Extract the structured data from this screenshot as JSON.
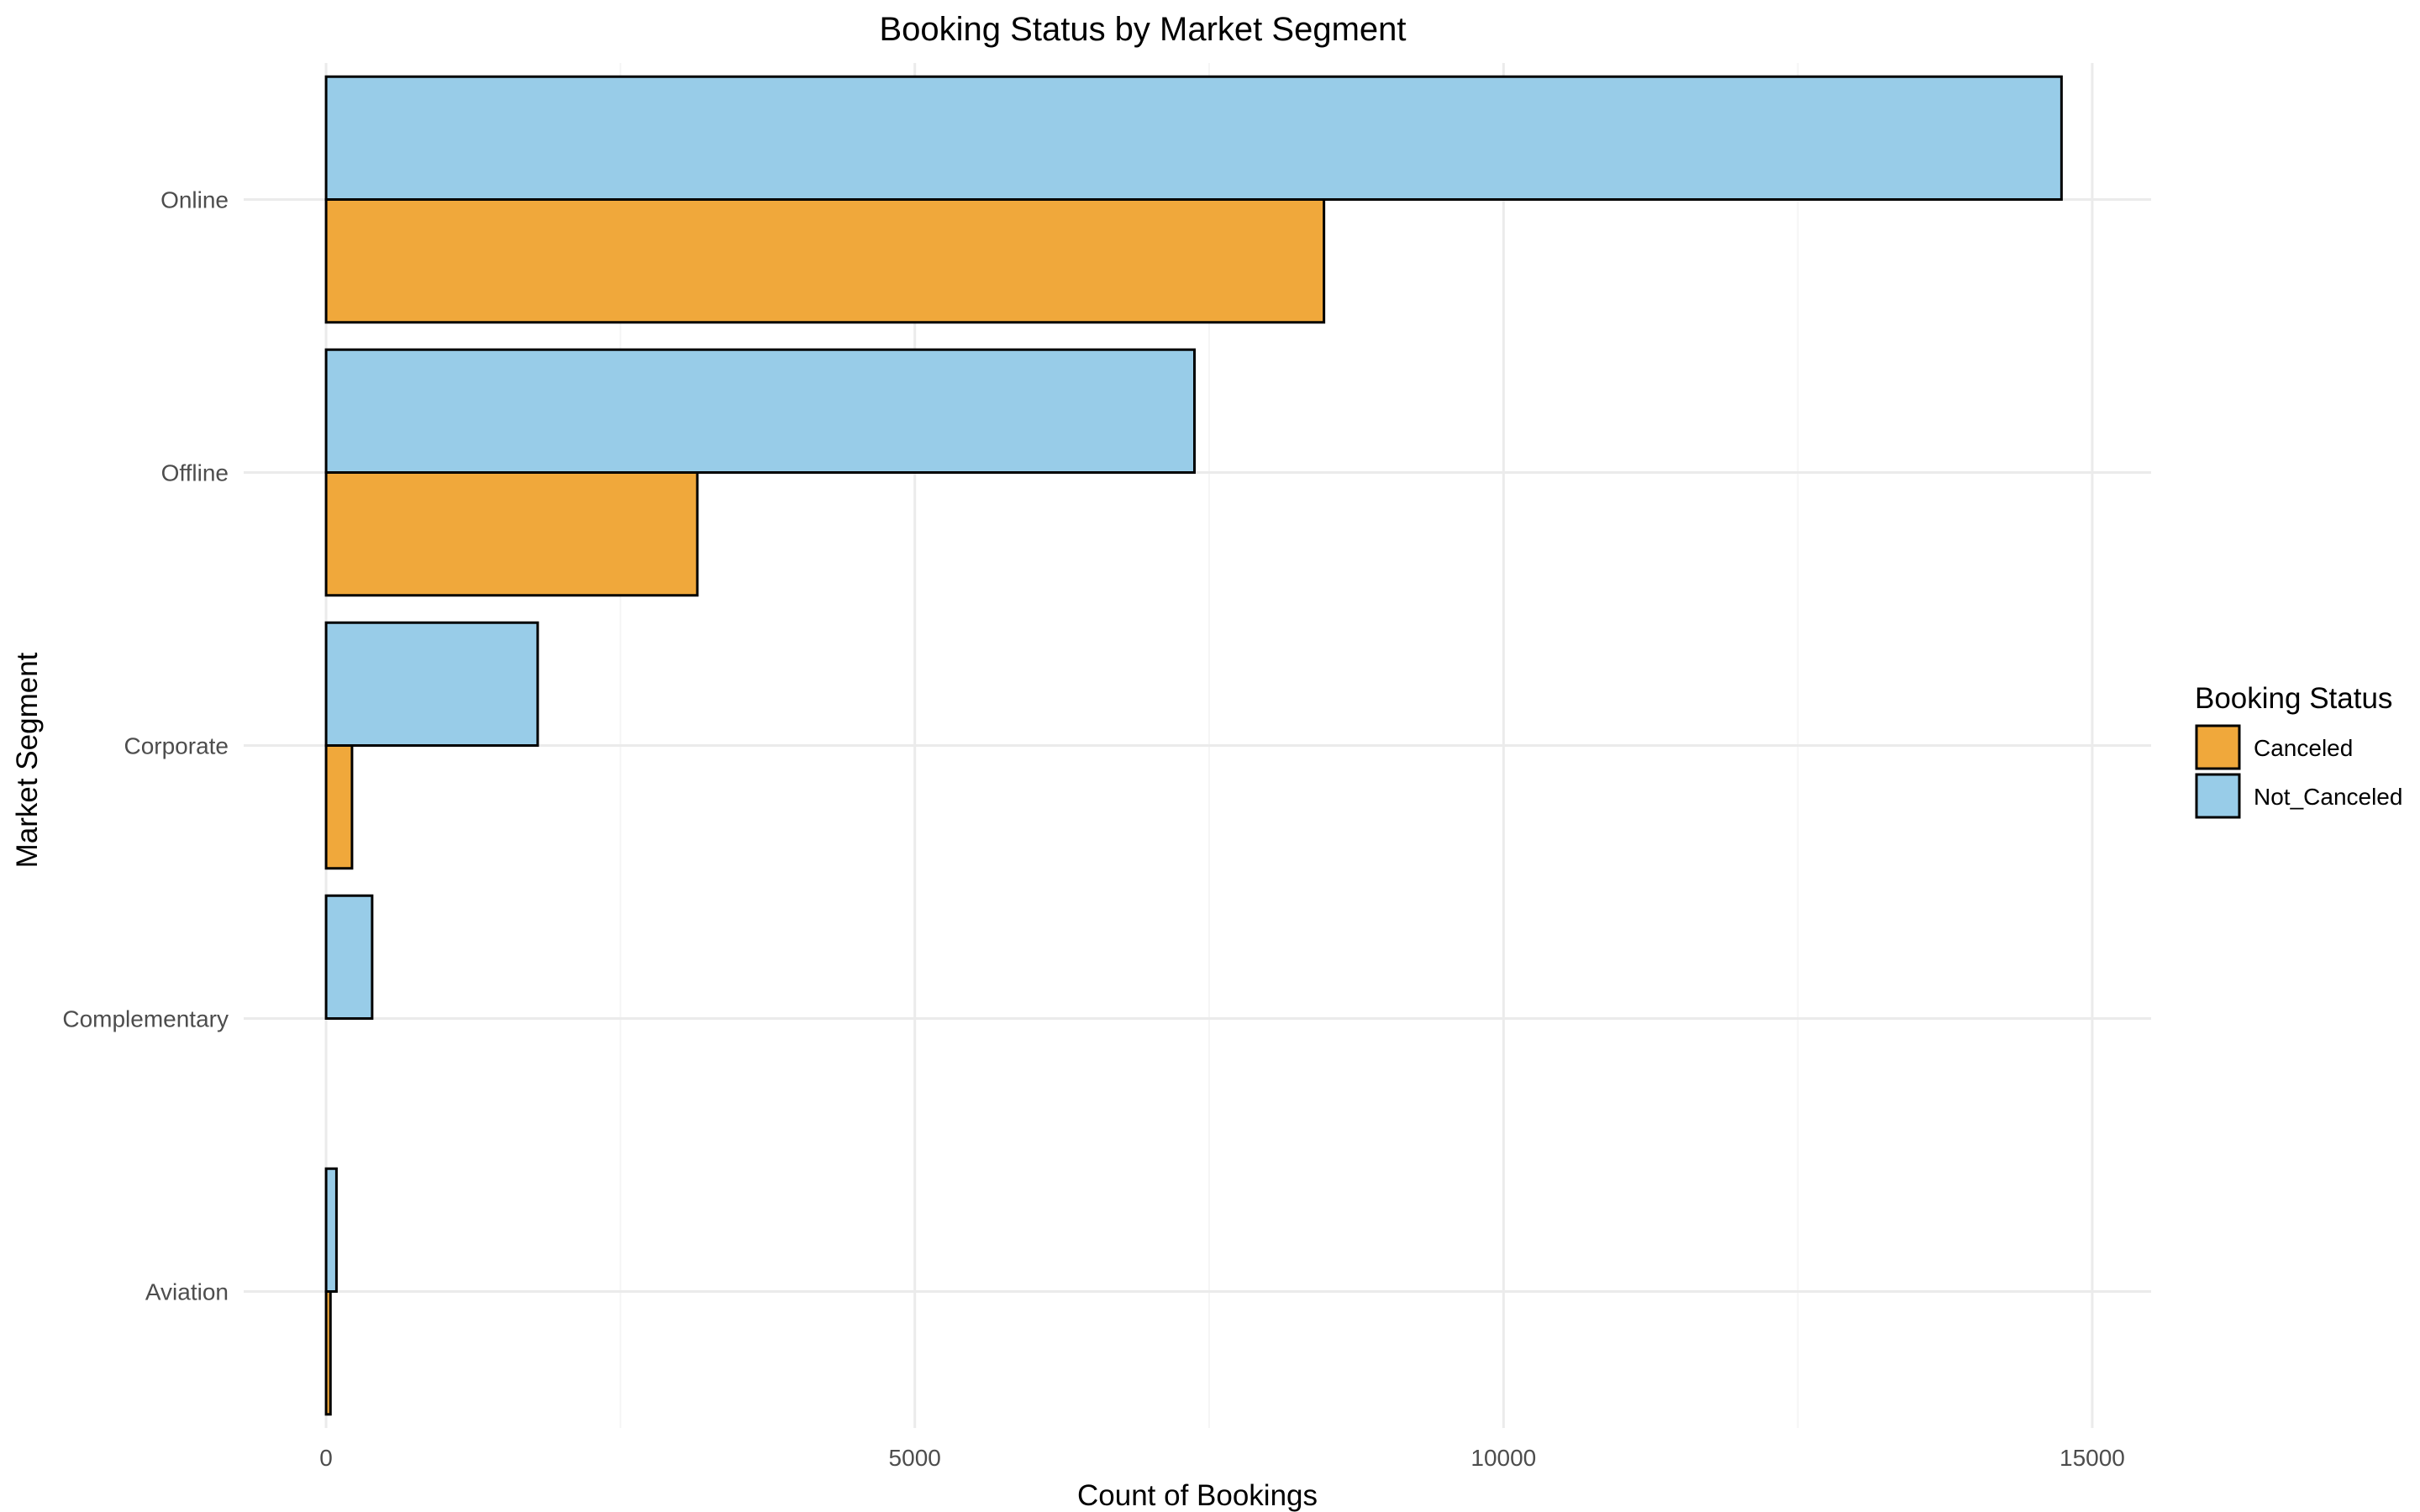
{
  "chart_data": {
    "type": "bar",
    "orientation": "horizontal",
    "title": "Booking Status by Market Segment",
    "xlabel": "Count of Bookings",
    "ylabel": "Market Segment",
    "categories": [
      "Aviation",
      "Complementary",
      "Corporate",
      "Offline",
      "Online"
    ],
    "series": [
      {
        "name": "Canceled",
        "values": [
          37,
          0,
          220,
          3153,
          8475
        ]
      },
      {
        "name": "Not_Canceled",
        "values": [
          88,
          391,
          1797,
          7375,
          14739
        ]
      }
    ],
    "xlim": [
      -700,
      15500
    ],
    "xticks": [
      0,
      5000,
      10000,
      15000
    ],
    "xtick_labels": [
      "0",
      "5000",
      "10000",
      "15000"
    ],
    "grid": true,
    "legend": {
      "title": "Booking Status",
      "position": "right",
      "entries": [
        "Canceled",
        "Not_Canceled"
      ]
    },
    "colors": {
      "Canceled": "#F0A83B",
      "Not_Canceled": "#98CCE8",
      "bar_outline": "#000000",
      "grid_major": "#EBEBEB",
      "grid_minor": "#F5F5F5",
      "tick_label": "#4D4D4D"
    }
  }
}
